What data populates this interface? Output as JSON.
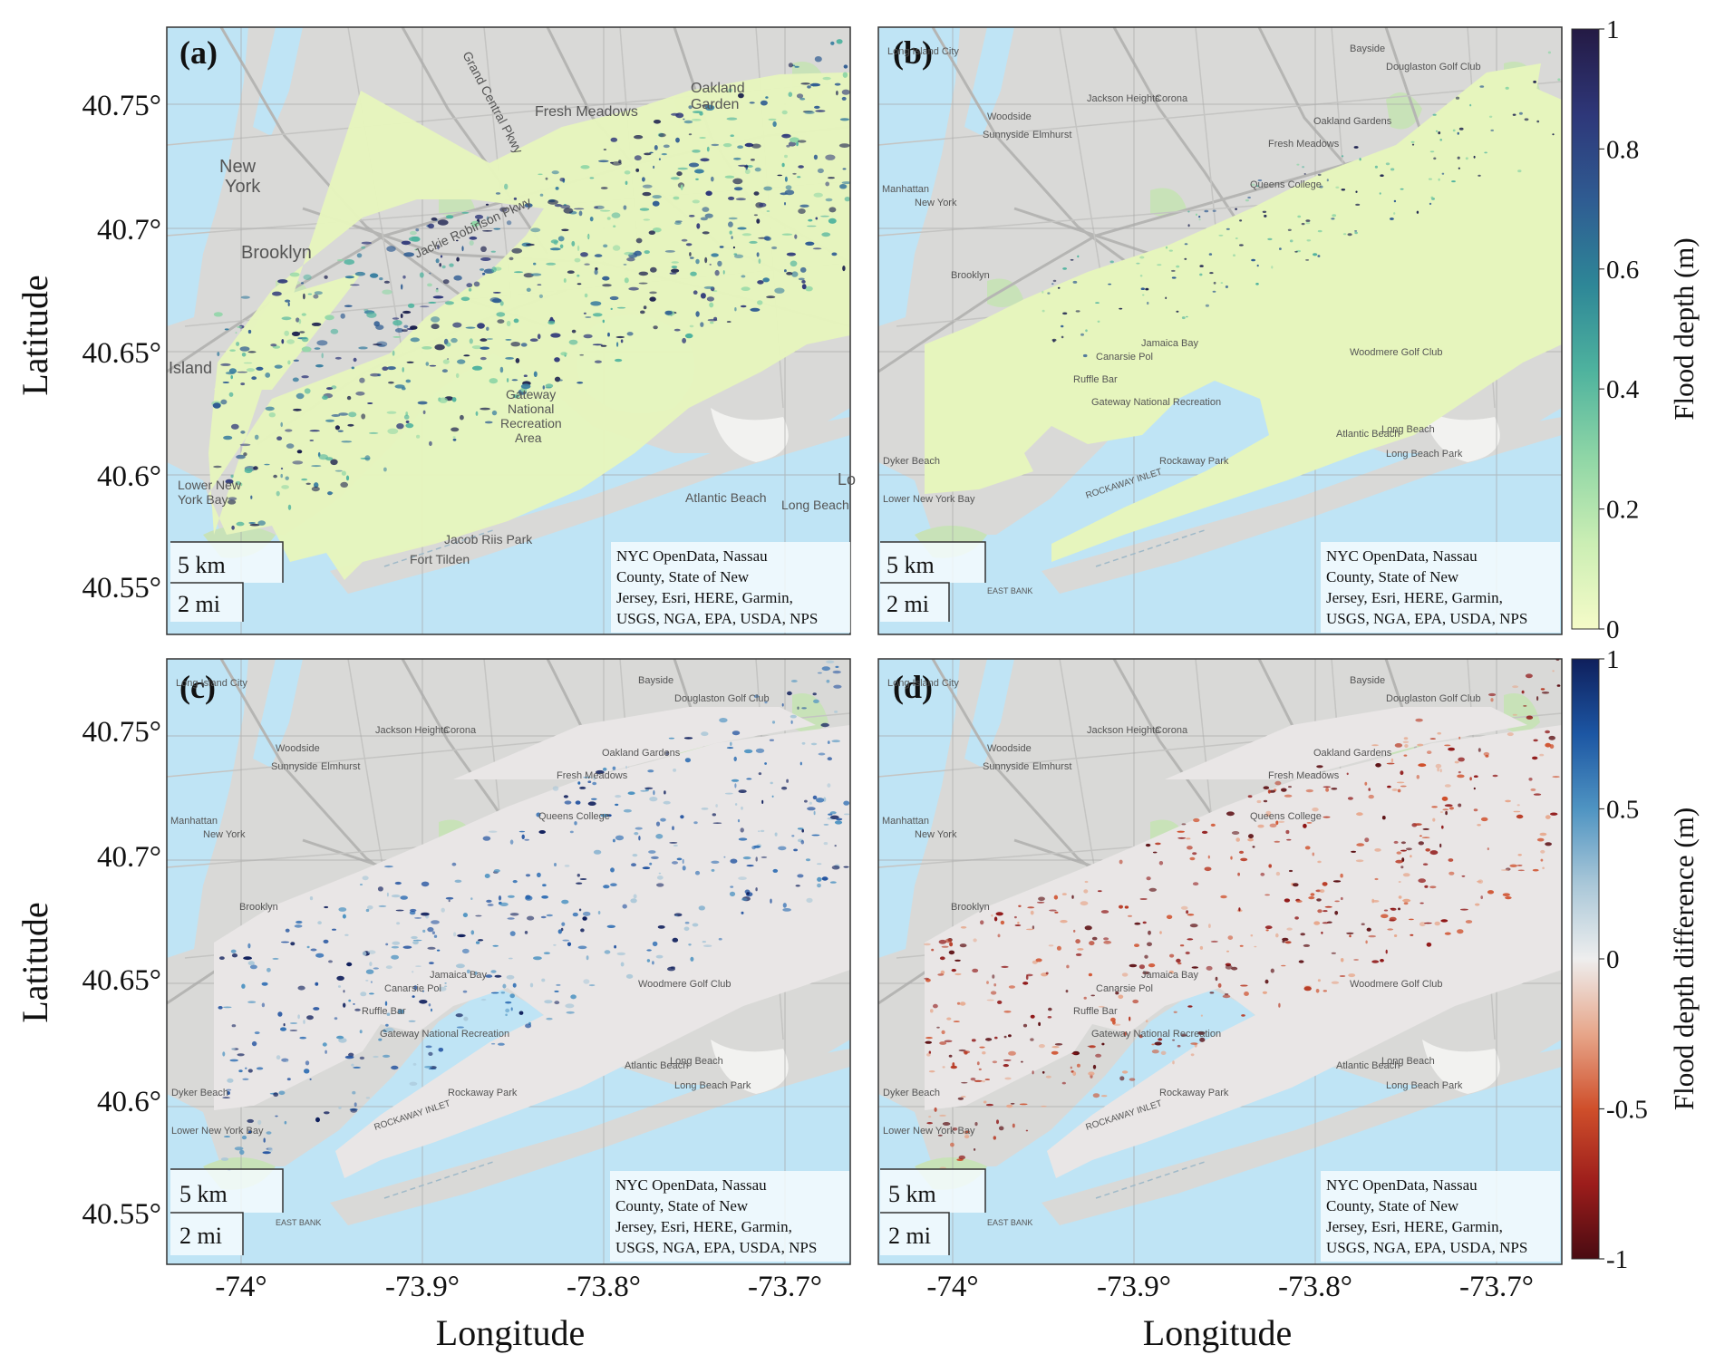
{
  "figure": {
    "xlabel": "Longitude",
    "ylabel": "Latitude",
    "lon_ticks": [
      "-74°",
      "-73.9°",
      "-73.8°",
      "-73.7°"
    ],
    "lat_ticks": [
      "40.75°",
      "40.7°",
      "40.65°",
      "40.6°",
      "40.55°"
    ],
    "scale_km": "5 km",
    "scale_mi": "2 mi",
    "credit_lines": [
      "NYC OpenData, Nassau",
      "County, State of New",
      "Jersey, Esri, HERE, Garmin,",
      "USGS, NGA, EPA, USDA, NPS"
    ]
  },
  "panels": [
    {
      "label": "(a)",
      "colormap": "flood_depth"
    },
    {
      "label": "(b)",
      "colormap": "flood_depth"
    },
    {
      "label": "(c)",
      "colormap": "difference_positive"
    },
    {
      "label": "(d)",
      "colormap": "difference_negative"
    }
  ],
  "basemap_labels": {
    "a": [
      "New",
      "York",
      "Brooklyn",
      "Fresh Meadows",
      "Oakland",
      "Garden",
      "Gateway",
      "National",
      "Recreation",
      "Area",
      "Atlantic Beach",
      "Long Beach",
      "Grand Central Pkwy",
      "Jackie Robinson Pkwy",
      "Jacob Riis Park",
      "Fort Tilden",
      "Lower New",
      "York Bay",
      "Island",
      "Lo"
    ],
    "small": [
      "Long Island City",
      "Woodside",
      "Jackson Heights",
      "Corona",
      "Sunnyside",
      "Elmhurst",
      "Fresh Meadows",
      "Oakland Gardens",
      "Queens College",
      "Bayside",
      "Douglaston Golf Club",
      "Manhattan",
      "New York",
      "Brooklyn",
      "Jamaica Bay",
      "Canarsie Pol",
      "Ruffle Bar",
      "Gateway National Recreation",
      "Woodmere Golf Club",
      "Long Beach",
      "Atlantic Beach",
      "Rockaway Park",
      "Dyker Beach",
      "Lower New York Bay",
      "Long Beach Park"
    ],
    "inlet": "ROCKAWAY INLET",
    "east_bank": "EAST BANK"
  },
  "colorbars": [
    {
      "label": "Flood depth (m)",
      "ticks": [
        "1",
        "0.8",
        "0.6",
        "0.4",
        "0.2",
        "0"
      ],
      "range": [
        0,
        1
      ],
      "colors": [
        "#f5fbc8",
        "#cbeeb4",
        "#8fd6a6",
        "#4fb39e",
        "#2e8797",
        "#2f5c92",
        "#2e3779",
        "#241a44"
      ]
    },
    {
      "label": "Flood depth difference (m)",
      "ticks": [
        "1",
        "0.5",
        "0",
        "-0.5",
        "-1"
      ],
      "range": [
        -1,
        1
      ],
      "colors": [
        "#4a0b12",
        "#9c1d1b",
        "#cf4f2b",
        "#e7a68a",
        "#eeeeee",
        "#a9c7d8",
        "#4f94c2",
        "#1c56a3",
        "#0f1f5c"
      ]
    }
  ],
  "palette": {
    "water": "#bfe4f5",
    "land": "#d9d9d7",
    "road": "#b5b5b3",
    "park": "#c8e2b8",
    "flood_light": "#e6f5bd",
    "flood_dark": "#1a1f4d",
    "diff_neutral": "#e9e6e6",
    "diff_blue": "#1e4f9e",
    "diff_red": "#8e1414"
  }
}
